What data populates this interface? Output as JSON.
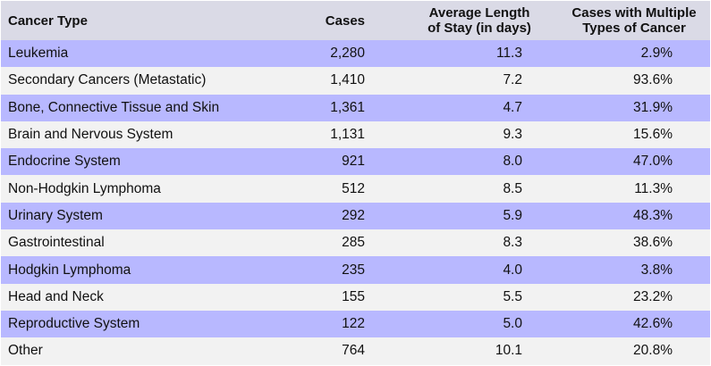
{
  "chart_data": {
    "type": "table",
    "columns": [
      "Cancer Type",
      "Cases",
      "Average Length of Stay (in days)",
      "Cases with Multiple Types of Cancer"
    ],
    "header_lines": {
      "c1": "Cancer Type",
      "c2": "Cases",
      "c3a": "Average Length",
      "c3b": "of Stay (in days)",
      "c4a": "Cases with Multiple",
      "c4b": "Types of Cancer"
    },
    "rows": [
      {
        "type": "Leukemia",
        "cases": "2,280",
        "stay": "11.3",
        "multiple": "2.9%"
      },
      {
        "type": "Secondary Cancers (Metastatic)",
        "cases": "1,410",
        "stay": "7.2",
        "multiple": "93.6%"
      },
      {
        "type": "Bone, Connective Tissue and Skin",
        "cases": "1,361",
        "stay": "4.7",
        "multiple": "31.9%"
      },
      {
        "type": "Brain and Nervous System",
        "cases": "1,131",
        "stay": "9.3",
        "multiple": "15.6%"
      },
      {
        "type": "Endocrine System",
        "cases": "921",
        "stay": "8.0",
        "multiple": "47.0%"
      },
      {
        "type": "Non-Hodgkin Lymphoma",
        "cases": "512",
        "stay": "8.5",
        "multiple": "11.3%"
      },
      {
        "type": "Urinary System",
        "cases": "292",
        "stay": "5.9",
        "multiple": "48.3%"
      },
      {
        "type": "Gastrointestinal",
        "cases": "285",
        "stay": "8.3",
        "multiple": "38.6%"
      },
      {
        "type": "Hodgkin Lymphoma",
        "cases": "235",
        "stay": "4.0",
        "multiple": "3.8%"
      },
      {
        "type": "Head and Neck",
        "cases": "155",
        "stay": "5.5",
        "multiple": "23.2%"
      },
      {
        "type": "Reproductive System",
        "cases": "122",
        "stay": "5.0",
        "multiple": "42.6%"
      },
      {
        "type": "Other",
        "cases": "764",
        "stay": "10.1",
        "multiple": "20.8%"
      }
    ]
  },
  "colors": {
    "header_bg": "#dadae6",
    "alt_row_bg": "#b8b8ff",
    "plain_row_bg": "#f2f2f2"
  }
}
